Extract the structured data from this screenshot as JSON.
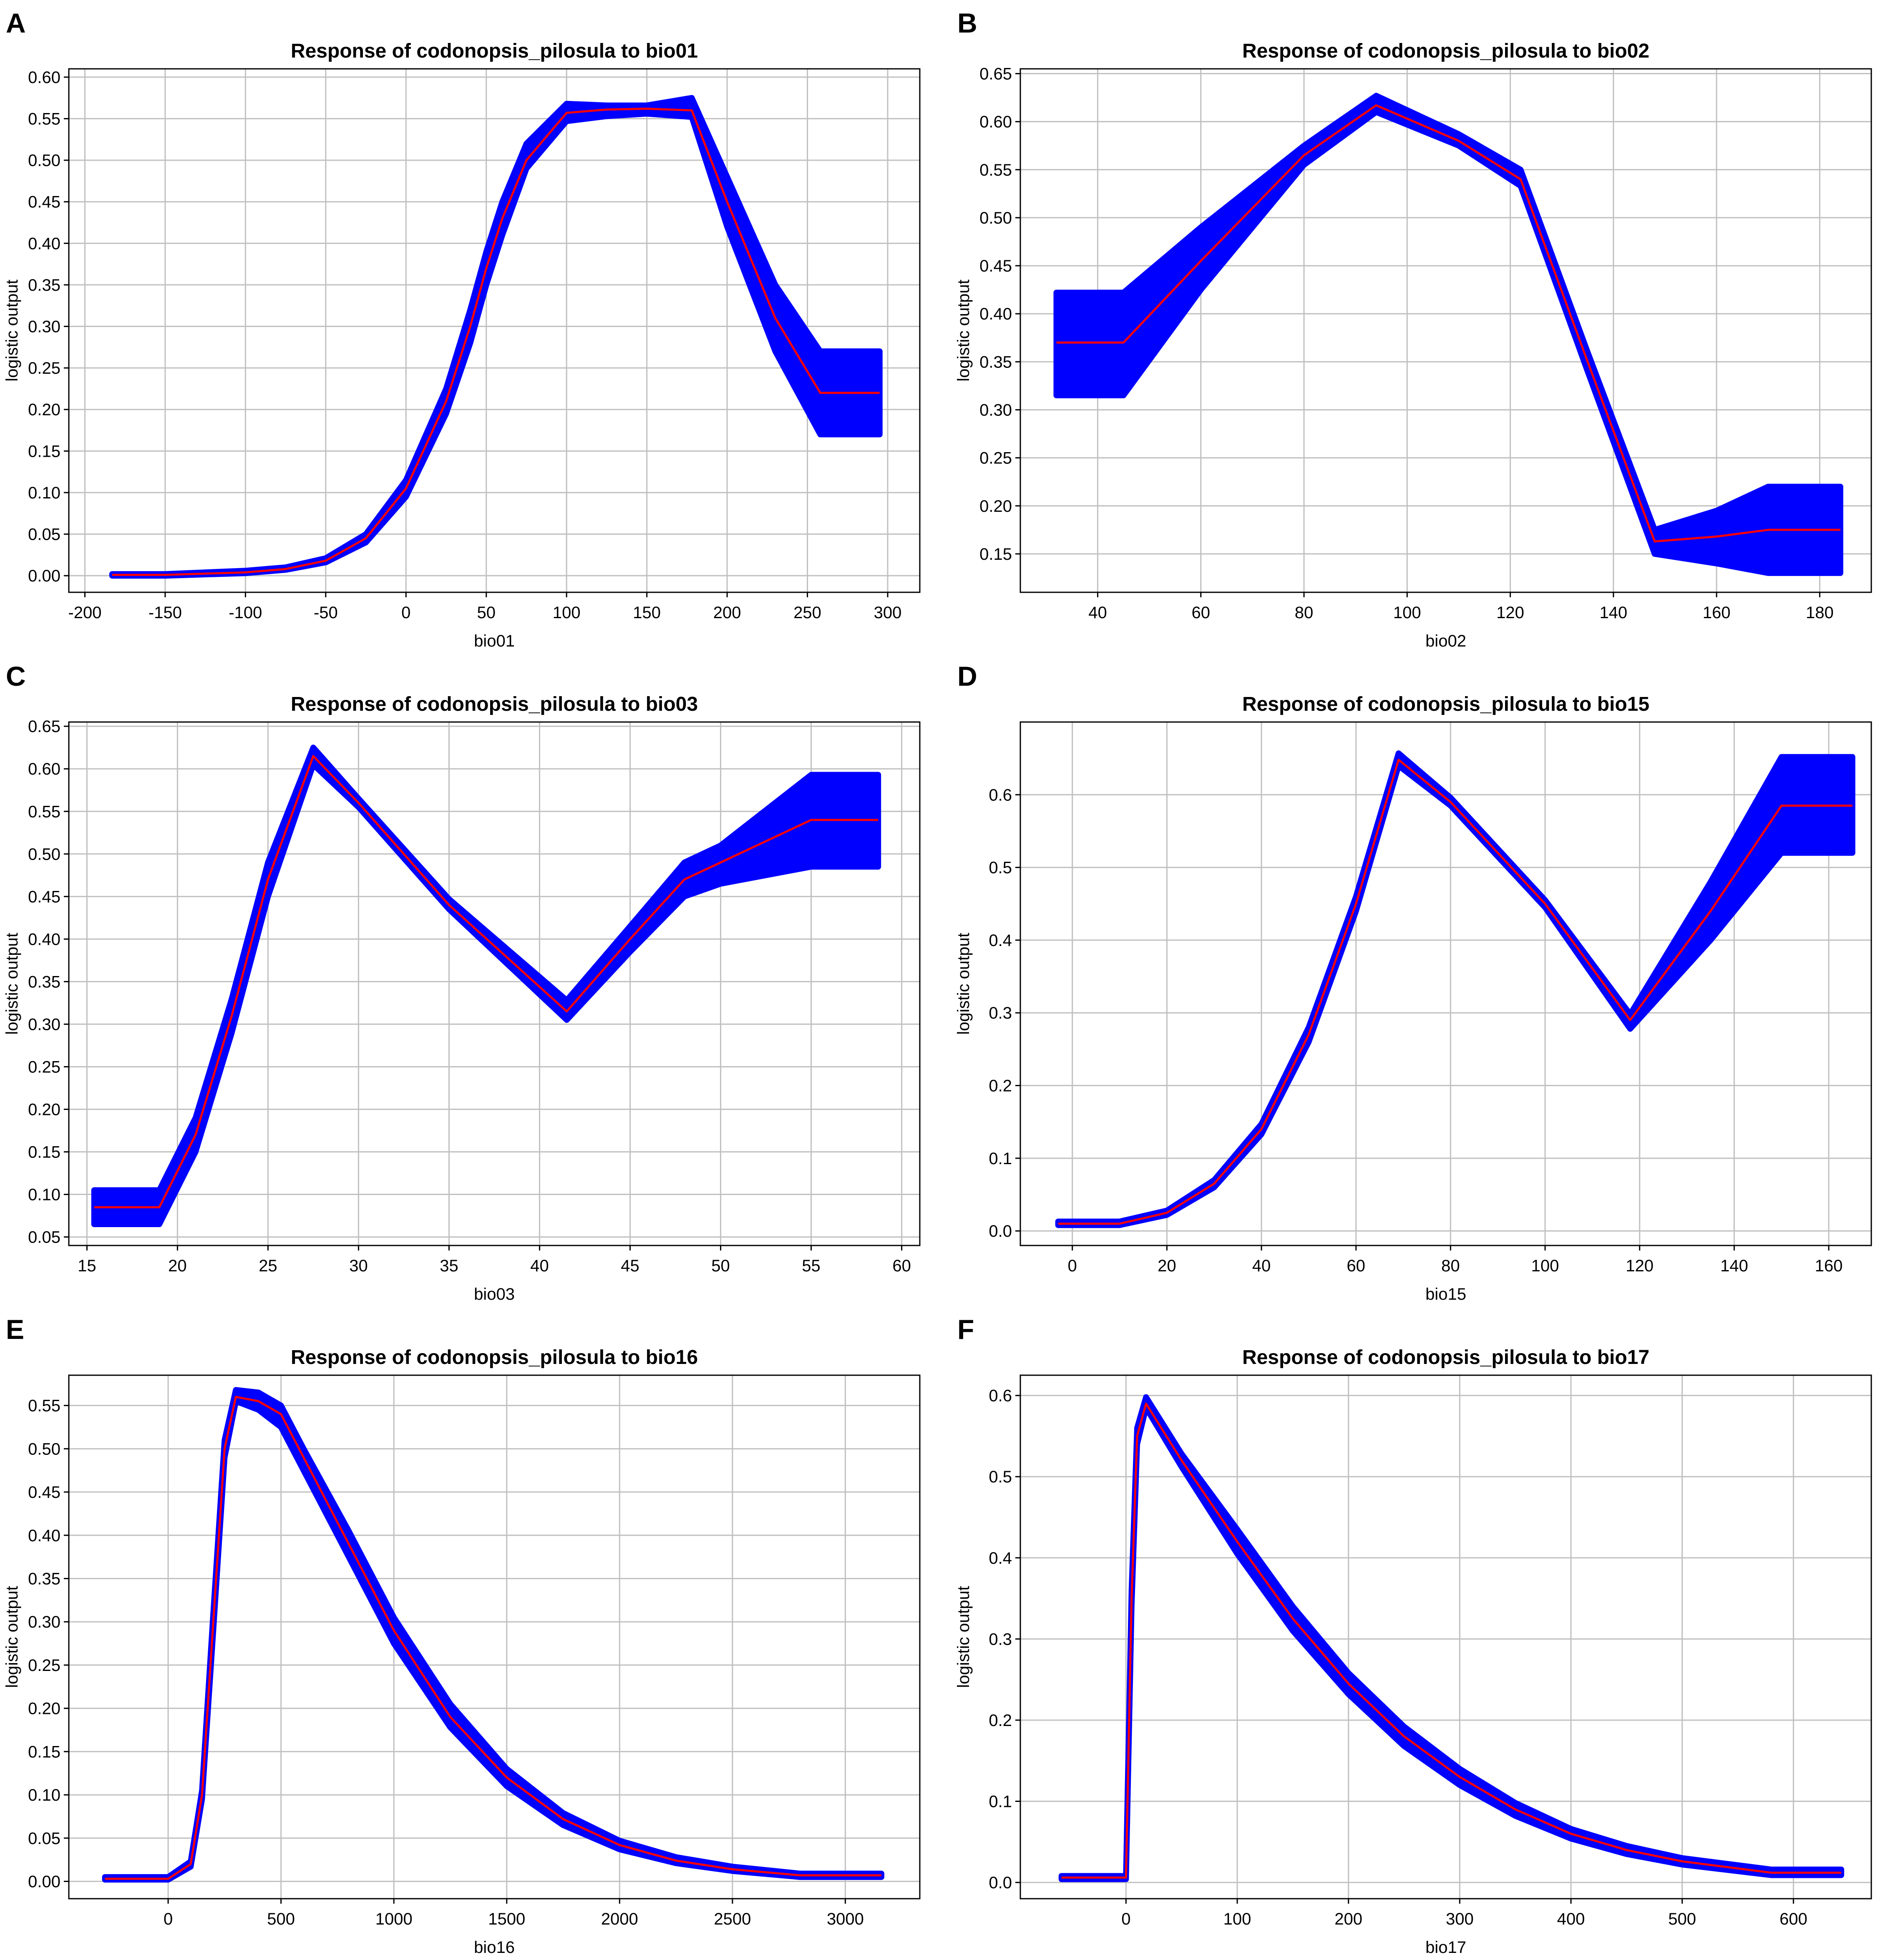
{
  "colors": {
    "band": "#0000ff",
    "line": "#ff0000",
    "grid": "#c0c0c0",
    "frame": "#000000"
  },
  "chart_data": [
    {
      "type": "line",
      "panel_label": "A",
      "title": "Response of codonopsis_pilosula to bio01",
      "xlabel": "bio01",
      "ylabel": "logistic output",
      "xlim": [
        -210,
        320
      ],
      "ylim": [
        -0.02,
        0.61
      ],
      "xticks": [
        -200,
        -150,
        -100,
        -50,
        0,
        50,
        100,
        150,
        200,
        250,
        300
      ],
      "yticks": [
        0.0,
        0.05,
        0.1,
        0.15,
        0.2,
        0.25,
        0.3,
        0.35,
        0.4,
        0.45,
        0.5,
        0.55,
        0.6
      ],
      "ydecimals": 2,
      "grid": true,
      "x": [
        -183,
        -150,
        -100,
        -75,
        -50,
        -25,
        0,
        25,
        40,
        50,
        60,
        75,
        100,
        125,
        150,
        178,
        200,
        230,
        258,
        295
      ],
      "mean": [
        0.001,
        0.001,
        0.004,
        0.008,
        0.018,
        0.045,
        0.105,
        0.21,
        0.3,
        0.37,
        0.43,
        0.5,
        0.557,
        0.561,
        0.562,
        0.56,
        0.45,
        0.31,
        0.22,
        0.22
      ],
      "lower": [
        0.0,
        0.0,
        0.003,
        0.007,
        0.016,
        0.04,
        0.095,
        0.195,
        0.28,
        0.35,
        0.41,
        0.49,
        0.547,
        0.553,
        0.556,
        0.552,
        0.42,
        0.27,
        0.17,
        0.17
      ],
      "upper": [
        0.002,
        0.002,
        0.006,
        0.01,
        0.021,
        0.05,
        0.115,
        0.225,
        0.32,
        0.39,
        0.45,
        0.52,
        0.568,
        0.566,
        0.566,
        0.575,
        0.48,
        0.35,
        0.27,
        0.27
      ]
    },
    {
      "type": "line",
      "panel_label": "B",
      "title": "Response of codonopsis_pilosula to bio02",
      "xlabel": "bio02",
      "ylabel": "logistic output",
      "xlim": [
        25,
        190
      ],
      "ylim": [
        0.11,
        0.655
      ],
      "xticks": [
        40,
        60,
        80,
        100,
        120,
        140,
        160,
        180
      ],
      "yticks": [
        0.15,
        0.2,
        0.25,
        0.3,
        0.35,
        0.4,
        0.45,
        0.5,
        0.55,
        0.6,
        0.65
      ],
      "ydecimals": 2,
      "grid": true,
      "x": [
        32,
        45,
        60,
        80,
        94,
        110,
        122,
        135,
        148,
        160,
        170,
        184
      ],
      "mean": [
        0.37,
        0.37,
        0.455,
        0.565,
        0.617,
        0.58,
        0.54,
        0.35,
        0.163,
        0.168,
        0.175,
        0.175
      ],
      "lower": [
        0.315,
        0.315,
        0.425,
        0.555,
        0.61,
        0.575,
        0.533,
        0.34,
        0.15,
        0.14,
        0.13,
        0.13
      ],
      "upper": [
        0.422,
        0.422,
        0.49,
        0.575,
        0.627,
        0.587,
        0.55,
        0.36,
        0.175,
        0.195,
        0.22,
        0.22
      ]
    },
    {
      "type": "line",
      "panel_label": "C",
      "title": "Response of codonopsis_pilosula to bio03",
      "xlabel": "bio03",
      "ylabel": "logistic output",
      "xlim": [
        14,
        61
      ],
      "ylim": [
        0.04,
        0.655
      ],
      "xticks": [
        15,
        20,
        25,
        30,
        35,
        40,
        45,
        50,
        55,
        60
      ],
      "yticks": [
        0.05,
        0.1,
        0.15,
        0.2,
        0.25,
        0.3,
        0.35,
        0.4,
        0.45,
        0.5,
        0.55,
        0.6,
        0.65
      ],
      "ydecimals": 2,
      "grid": true,
      "x": [
        15.4,
        19,
        21,
        23,
        25,
        27.5,
        30,
        35,
        41.5,
        45,
        48,
        50,
        55,
        58.7
      ],
      "mean": [
        0.085,
        0.085,
        0.17,
        0.31,
        0.47,
        0.615,
        0.56,
        0.44,
        0.315,
        0.4,
        0.47,
        0.49,
        0.54,
        0.54
      ],
      "lower": [
        0.065,
        0.065,
        0.15,
        0.29,
        0.45,
        0.605,
        0.555,
        0.435,
        0.305,
        0.385,
        0.45,
        0.465,
        0.485,
        0.485
      ],
      "upper": [
        0.105,
        0.105,
        0.19,
        0.33,
        0.49,
        0.625,
        0.565,
        0.447,
        0.328,
        0.415,
        0.49,
        0.51,
        0.593,
        0.593
      ]
    },
    {
      "type": "line",
      "panel_label": "D",
      "title": "Response of codonopsis_pilosula to bio15",
      "xlabel": "bio15",
      "ylabel": "logistic output",
      "xlim": [
        -11,
        169
      ],
      "ylim": [
        -0.02,
        0.7
      ],
      "xticks": [
        0,
        20,
        40,
        60,
        80,
        100,
        120,
        140,
        160
      ],
      "yticks": [
        0.0,
        0.1,
        0.2,
        0.3,
        0.4,
        0.5,
        0.6
      ],
      "ydecimals": 1,
      "grid": true,
      "x": [
        -3,
        10,
        20,
        30,
        40,
        50,
        60,
        69,
        80,
        100,
        118,
        135,
        150,
        165
      ],
      "mean": [
        0.01,
        0.01,
        0.025,
        0.065,
        0.14,
        0.27,
        0.45,
        0.648,
        0.59,
        0.45,
        0.29,
        0.44,
        0.585,
        0.585
      ],
      "lower": [
        0.008,
        0.008,
        0.022,
        0.06,
        0.133,
        0.26,
        0.44,
        0.64,
        0.585,
        0.445,
        0.278,
        0.4,
        0.52,
        0.52
      ],
      "upper": [
        0.013,
        0.013,
        0.028,
        0.07,
        0.147,
        0.28,
        0.46,
        0.657,
        0.596,
        0.455,
        0.298,
        0.48,
        0.652,
        0.652
      ]
    },
    {
      "type": "line",
      "panel_label": "E",
      "title": "Response of codonopsis_pilosula to bio16",
      "xlabel": "bio16",
      "ylabel": "logistic output",
      "xlim": [
        -440,
        3330
      ],
      "ylim": [
        -0.02,
        0.585
      ],
      "xticks": [
        0,
        500,
        1000,
        1500,
        2000,
        2500,
        3000
      ],
      "yticks": [
        0.0,
        0.05,
        0.1,
        0.15,
        0.2,
        0.25,
        0.3,
        0.35,
        0.4,
        0.45,
        0.5,
        0.55
      ],
      "ydecimals": 2,
      "grid": true,
      "x": [
        -280,
        0,
        100,
        150,
        200,
        250,
        300,
        400,
        500,
        600,
        800,
        1000,
        1250,
        1500,
        1750,
        2000,
        2250,
        2500,
        2800,
        3160
      ],
      "mean": [
        0.003,
        0.003,
        0.02,
        0.1,
        0.3,
        0.5,
        0.56,
        0.555,
        0.54,
        0.49,
        0.39,
        0.29,
        0.19,
        0.12,
        0.072,
        0.042,
        0.024,
        0.014,
        0.007,
        0.007
      ],
      "lower": [
        0.002,
        0.002,
        0.017,
        0.095,
        0.29,
        0.49,
        0.555,
        0.545,
        0.525,
        0.475,
        0.375,
        0.275,
        0.178,
        0.11,
        0.065,
        0.037,
        0.021,
        0.012,
        0.005,
        0.005
      ],
      "upper": [
        0.005,
        0.005,
        0.023,
        0.105,
        0.31,
        0.51,
        0.568,
        0.565,
        0.55,
        0.5,
        0.405,
        0.305,
        0.205,
        0.13,
        0.079,
        0.047,
        0.028,
        0.017,
        0.009,
        0.009
      ]
    },
    {
      "type": "line",
      "panel_label": "F",
      "title": "Response of codonopsis_pilosula to bio17",
      "xlabel": "bio17",
      "ylabel": "logistic output",
      "xlim": [
        -95,
        670
      ],
      "ylim": [
        -0.02,
        0.625
      ],
      "xticks": [
        0,
        100,
        200,
        300,
        400,
        500,
        600
      ],
      "yticks": [
        0.0,
        0.1,
        0.2,
        0.3,
        0.4,
        0.5,
        0.6
      ],
      "ydecimals": 1,
      "grid": true,
      "x": [
        -58,
        0,
        5,
        10,
        18,
        50,
        100,
        150,
        200,
        250,
        300,
        350,
        400,
        450,
        500,
        580,
        643
      ],
      "mean": [
        0.006,
        0.006,
        0.35,
        0.55,
        0.59,
        0.52,
        0.42,
        0.325,
        0.245,
        0.18,
        0.13,
        0.09,
        0.06,
        0.04,
        0.026,
        0.012,
        0.012
      ],
      "lower": [
        0.004,
        0.004,
        0.34,
        0.54,
        0.585,
        0.512,
        0.405,
        0.31,
        0.232,
        0.168,
        0.12,
        0.082,
        0.054,
        0.035,
        0.022,
        0.009,
        0.009
      ],
      "upper": [
        0.008,
        0.008,
        0.36,
        0.56,
        0.598,
        0.528,
        0.435,
        0.34,
        0.258,
        0.192,
        0.14,
        0.098,
        0.066,
        0.045,
        0.03,
        0.016,
        0.016
      ]
    }
  ]
}
